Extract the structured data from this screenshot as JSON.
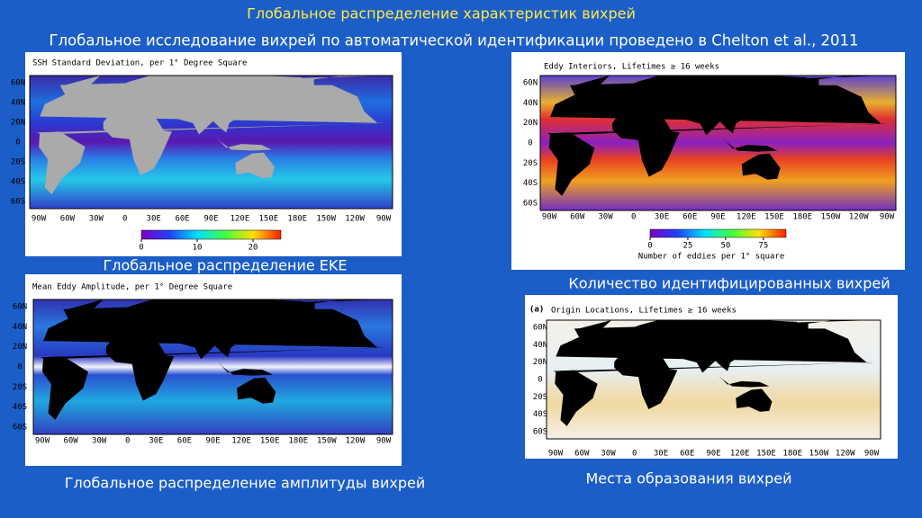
{
  "title": "Глобальное распределение характеристик вихрей",
  "subtitle": "Глобальное исследование вихрей по автоматической идентификации проведено в Chelton et al., 2011",
  "panels": [
    {
      "heading": "SSH Standard Deviation, per 1° Degree Square",
      "lat_labels": [
        "60N",
        "40N",
        "20N",
        "0",
        "20S",
        "40S",
        "60S"
      ],
      "lon_labels": [
        "90W",
        "60W",
        "30W",
        "0",
        "30E",
        "60E",
        "90E",
        "120E",
        "150E",
        "180E",
        "150W",
        "120W",
        "90W"
      ],
      "colorbar_range": [
        0,
        25
      ],
      "colorbar_ticks": [
        0,
        10,
        20
      ],
      "caption": "Глобальное распределение EKE"
    },
    {
      "heading": "Eddy Interiors, Lifetimes ≥ 16 weeks",
      "lat_labels": [
        "60N",
        "40N",
        "20N",
        "0",
        "20S",
        "40S",
        "60S"
      ],
      "lon_labels": [
        "90W",
        "60W",
        "30W",
        "0",
        "30E",
        "60E",
        "90E",
        "120E",
        "150E",
        "180E",
        "150W",
        "120W",
        "90W"
      ],
      "colorbar_range": [
        0,
        90
      ],
      "colorbar_ticks": [
        0,
        25,
        50,
        75
      ],
      "colorbar_label": "Number of eddies per 1° square",
      "caption": "Количество идентифицированных вихрей"
    },
    {
      "heading": "Mean Eddy Amplitude, per 1° Degree Square",
      "lat_labels": [
        "60N",
        "40N",
        "20N",
        "0",
        "20S",
        "40S",
        "60S"
      ],
      "lon_labels": [
        "90W",
        "60W",
        "30W",
        "0",
        "30E",
        "60E",
        "90E",
        "120E",
        "150E",
        "180E",
        "150W",
        "120W",
        "90W"
      ],
      "caption": "Глобальное распределение амплитуды вихрей"
    },
    {
      "panel_label": "(a)",
      "heading": "Origin Locations, Lifetimes ≥ 16 weeks",
      "lat_labels": [
        "60N",
        "40N",
        "20N",
        "0",
        "20S",
        "40S",
        "60S"
      ],
      "lon_labels": [
        "90W",
        "60W",
        "30W",
        "0",
        "30E",
        "60E",
        "90E",
        "120E",
        "150E",
        "180E",
        "150W",
        "120W",
        "90W"
      ],
      "caption": "Места образования вихрей"
    }
  ]
}
